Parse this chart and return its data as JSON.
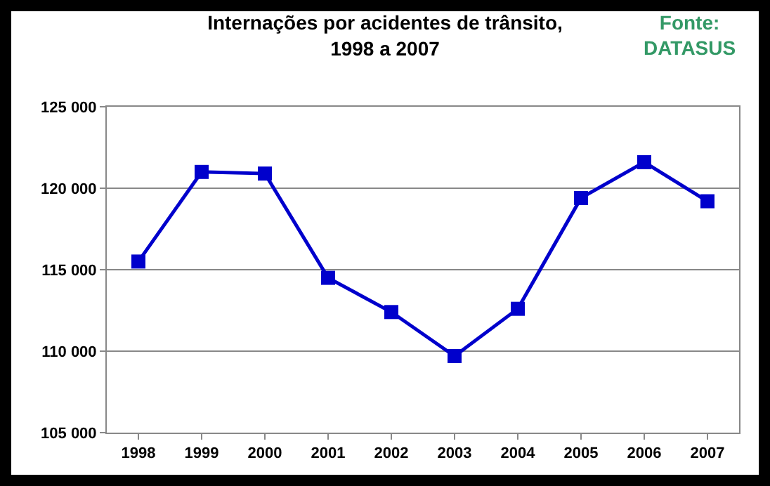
{
  "chart_data": {
    "type": "line",
    "title": "Internações por acidentes de trânsito,\n1998 a 2007",
    "categories": [
      "1998",
      "1999",
      "2000",
      "2001",
      "2002",
      "2003",
      "2004",
      "2005",
      "2006",
      "2007"
    ],
    "series": [
      {
        "color": "#0000cc",
        "values": [
          115500,
          121000,
          120900,
          114500,
          112400,
          109700,
          112600,
          119400,
          121600,
          119200
        ]
      }
    ],
    "ylim": [
      105000,
      125000
    ],
    "yticks": [
      {
        "value": 105000,
        "label": "105 000"
      },
      {
        "value": 110000,
        "label": "110 000"
      },
      {
        "value": 115000,
        "label": "115 000"
      },
      {
        "value": 120000,
        "label": "120 000"
      },
      {
        "value": 125000,
        "label": "125 000"
      }
    ],
    "grid": "y",
    "marker": "square",
    "line_style": "solid",
    "annotations": [
      "Fonte:\nDATASUS"
    ]
  }
}
